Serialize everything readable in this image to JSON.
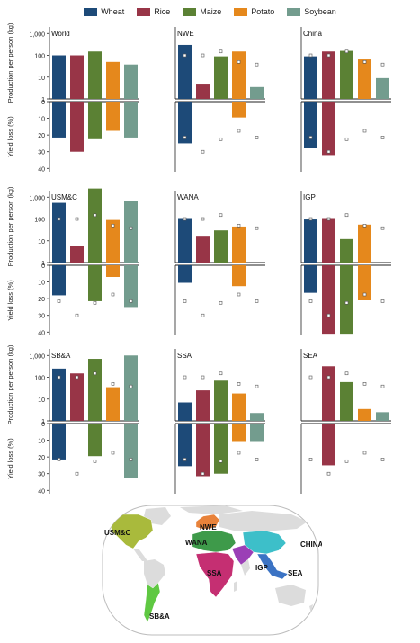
{
  "legend": [
    {
      "name": "Wheat",
      "color": "#1d4a78"
    },
    {
      "name": "Rice",
      "color": "#983547"
    },
    {
      "name": "Maize",
      "color": "#5b8134"
    },
    {
      "name": "Potato",
      "color": "#e5881c"
    },
    {
      "name": "Soybean",
      "color": "#739c8e"
    }
  ],
  "axis_labels": {
    "production": "Production per person (kg)",
    "yield_loss": "Yield loss (%)"
  },
  "production_ticks": [
    "1,000",
    "100",
    "10",
    "1"
  ],
  "loss_ticks": [
    "0",
    "10",
    "20",
    "30",
    "40"
  ],
  "map": {
    "labels": [
      "USM&C",
      "NWE",
      "WANA",
      "CHINA",
      "IGP",
      "SSA",
      "SEA",
      "SB&A"
    ],
    "region_colors": {
      "USM&C": "#a9ba3c",
      "NWE": "#e8823a",
      "WANA": "#3e9a4a",
      "CHINA": "#3dbfc9",
      "IGP": "#9b3fb6",
      "SSA": "#c52f72",
      "SEA": "#3b73c4",
      "SB&A": "#5fc842"
    }
  },
  "chart_data": [
    {
      "type": "bar",
      "title": "World",
      "categories": [
        "Wheat",
        "Rice",
        "Maize",
        "Potato",
        "Soybean"
      ],
      "production": [
        100,
        100,
        150,
        50,
        38
      ],
      "production_markers": [
        null,
        null,
        null,
        null,
        null
      ],
      "yield_loss": [
        21.5,
        30,
        22.5,
        17.5,
        21.5
      ],
      "loss_markers": [
        null,
        null,
        null,
        null,
        null
      ]
    },
    {
      "type": "bar",
      "title": "NWE",
      "categories": [
        "Wheat",
        "Rice",
        "Maize",
        "Potato",
        "Soybean"
      ],
      "production": [
        300,
        5,
        90,
        150,
        3.5
      ],
      "production_markers": [
        100,
        100,
        150,
        50,
        38
      ],
      "yield_loss": [
        25,
        0,
        0,
        9.5,
        0
      ],
      "loss_markers": [
        21.5,
        30,
        22.5,
        17.5,
        21.5
      ]
    },
    {
      "type": "bar",
      "title": "China",
      "categories": [
        "Wheat",
        "Rice",
        "Maize",
        "Potato",
        "Soybean"
      ],
      "production": [
        90,
        150,
        160,
        65,
        9
      ],
      "production_markers": [
        100,
        100,
        150,
        50,
        38
      ],
      "yield_loss": [
        28,
        32,
        0,
        0,
        0
      ],
      "loss_markers": [
        21.5,
        30,
        22.5,
        17.5,
        21.5
      ]
    },
    {
      "type": "bar",
      "title": "USM&C",
      "categories": [
        "Wheat",
        "Rice",
        "Maize",
        "Potato",
        "Soybean"
      ],
      "production": [
        550,
        6,
        2500,
        90,
        700
      ],
      "production_markers": [
        100,
        100,
        150,
        50,
        38
      ],
      "yield_loss": [
        18,
        0,
        21.5,
        7,
        25
      ],
      "loss_markers": [
        21.5,
        30,
        22.5,
        17.5,
        21.5
      ]
    },
    {
      "type": "bar",
      "title": "WANA",
      "categories": [
        "Wheat",
        "Rice",
        "Maize",
        "Potato",
        "Soybean"
      ],
      "production": [
        110,
        17,
        30,
        45,
        0
      ],
      "production_markers": [
        100,
        100,
        150,
        50,
        38
      ],
      "yield_loss": [
        10.5,
        0,
        0,
        12.5,
        0
      ],
      "loss_markers": [
        21.5,
        30,
        22.5,
        17.5,
        21.5
      ]
    },
    {
      "type": "bar",
      "title": "IGP",
      "categories": [
        "Wheat",
        "Rice",
        "Maize",
        "Potato",
        "Soybean"
      ],
      "production": [
        95,
        110,
        12,
        55,
        0
      ],
      "production_markers": [
        100,
        100,
        150,
        50,
        38
      ],
      "yield_loss": [
        16.5,
        41,
        41,
        21,
        0
      ],
      "loss_markers": [
        21.5,
        30,
        22.5,
        17.5,
        21.5
      ]
    },
    {
      "type": "bar",
      "title": "SB&A",
      "categories": [
        "Wheat",
        "Rice",
        "Maize",
        "Potato",
        "Soybean"
      ],
      "production": [
        250,
        150,
        700,
        35,
        1000
      ],
      "production_markers": [
        100,
        100,
        150,
        50,
        38
      ],
      "yield_loss": [
        21.5,
        0,
        19.5,
        0,
        32.5
      ],
      "loss_markers": [
        21.5,
        30,
        22.5,
        17.5,
        21.5
      ]
    },
    {
      "type": "bar",
      "title": "SSA",
      "categories": [
        "Wheat",
        "Rice",
        "Maize",
        "Potato",
        "Soybean"
      ],
      "production": [
        7,
        25,
        70,
        18,
        2.3
      ],
      "production_markers": [
        100,
        100,
        150,
        50,
        38
      ],
      "yield_loss": [
        25.5,
        31.5,
        30,
        10.5,
        10.5
      ],
      "loss_markers": [
        21.5,
        30,
        22.5,
        17.5,
        21.5
      ]
    },
    {
      "type": "bar",
      "title": "SEA",
      "categories": [
        "Wheat",
        "Rice",
        "Maize",
        "Potato",
        "Soybean"
      ],
      "production": [
        0,
        320,
        60,
        3.5,
        2.5
      ],
      "production_markers": [
        100,
        100,
        150,
        50,
        38
      ],
      "yield_loss": [
        0,
        25,
        0,
        0,
        0
      ],
      "loss_markers": [
        21.5,
        30,
        22.5,
        17.5,
        21.5
      ]
    }
  ]
}
